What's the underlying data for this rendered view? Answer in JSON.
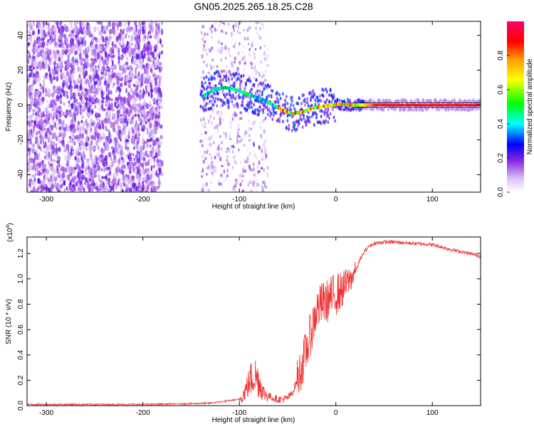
{
  "page_title": "GN05.2025.265.18.25.C28",
  "chart_data": [
    {
      "type": "heatmap",
      "xlabel": "Height of straight line (km)",
      "ylabel": "Frequency (Hz)",
      "xlim": [
        -320,
        150
      ],
      "ylim": [
        -50,
        48
      ],
      "x_ticks": [
        -300,
        -200,
        -100,
        0,
        100
      ],
      "y_ticks": [
        -40,
        -20,
        0,
        20,
        40
      ],
      "colorbar": {
        "label": "Normalized spectral amplitude",
        "range": [
          0,
          1
        ],
        "ticks": [
          0.0,
          0.2,
          0.4,
          0.6,
          0.8
        ],
        "colors": [
          "#ffffff",
          "#8a2be2",
          "#0000ff",
          "#00ffff",
          "#00ff00",
          "#ffff00",
          "#ff8800",
          "#ff0000",
          "#ff0066"
        ]
      },
      "ridge": {
        "x": [
          -135,
          -125,
          -115,
          -105,
          -95,
          -85,
          -75,
          -65,
          -55,
          -45,
          -35,
          -25,
          -15,
          -5,
          5,
          15,
          30,
          60,
          100,
          150
        ],
        "y": [
          6,
          9,
          10,
          9,
          7,
          5,
          3,
          0,
          -3,
          -5,
          -4,
          -2,
          -1,
          0,
          0.5,
          0,
          0,
          0,
          0,
          0
        ]
      }
    },
    {
      "type": "line",
      "xlabel": "Height of straight line (km)",
      "ylabel": "SNR (10 * v/v)",
      "y_multiplier": "(x10",
      "y_multiplier_exp": "4",
      "y_multiplier_close": ")",
      "xlim": [
        -320,
        150
      ],
      "ylim": [
        0,
        1.33
      ],
      "x_ticks": [
        -300,
        -200,
        -100,
        0,
        100
      ],
      "y_ticks": [
        0.0,
        0.2,
        0.4,
        0.6,
        0.8,
        1.0,
        1.2
      ],
      "color": "#ee3333",
      "series": [
        {
          "x": [
            -320,
            -250,
            -200,
            -150,
            -130,
            -120,
            -110,
            -100,
            -95,
            -90,
            -85,
            -80,
            -75,
            -70,
            -65,
            -60,
            -55,
            -50,
            -45,
            -40,
            -35,
            -30,
            -25,
            -20,
            -15,
            -10,
            -5,
            0,
            5,
            10,
            15,
            20,
            25,
            30,
            35,
            40,
            50,
            60,
            80,
            100,
            120,
            150
          ],
          "y": [
            0.01,
            0.01,
            0.01,
            0.015,
            0.02,
            0.03,
            0.04,
            0.05,
            0.1,
            0.18,
            0.25,
            0.2,
            0.1,
            0.08,
            0.06,
            0.05,
            0.05,
            0.06,
            0.1,
            0.2,
            0.32,
            0.45,
            0.6,
            0.75,
            0.8,
            0.82,
            0.85,
            0.88,
            0.9,
            0.95,
            1.0,
            1.05,
            1.15,
            1.22,
            1.26,
            1.28,
            1.29,
            1.29,
            1.28,
            1.27,
            1.23,
            1.18
          ]
        }
      ]
    }
  ]
}
